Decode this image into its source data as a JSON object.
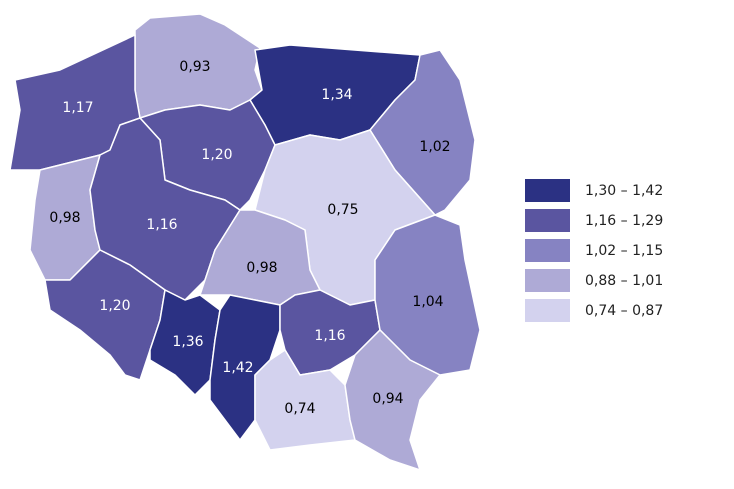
{
  "regions": [
    {
      "label": "0,93",
      "color": "#aeaad6"
    },
    {
      "label": "1,34",
      "color": "#2b3183"
    },
    {
      "label": "1,02",
      "color": "#8683c2"
    },
    {
      "label": "1,17",
      "color": "#5a55a0"
    },
    {
      "label": "1,20",
      "color": "#5a55a0"
    },
    {
      "label": "0,98",
      "color": "#aeaad6"
    },
    {
      "label": "1,16",
      "color": "#5a55a0"
    },
    {
      "label": "0,75",
      "color": "#d3d2ee"
    },
    {
      "label": "0,98",
      "color": "#aeaad6"
    },
    {
      "label": "1,20",
      "color": "#5a55a0"
    },
    {
      "label": "1,36",
      "color": "#2b3183"
    },
    {
      "label": "1,42",
      "color": "#2b3183"
    },
    {
      "label": "1,16",
      "color": "#5a55a0"
    },
    {
      "label": "1,04",
      "color": "#8683c2"
    },
    {
      "label": "0,74",
      "color": "#d3d2ee"
    },
    {
      "label": "0,94",
      "color": "#aeaad6"
    }
  ],
  "legend": [
    {
      "label": "1,30 – 1,42",
      "color": "#2b3183"
    },
    {
      "label": "1,16 – 1,29",
      "color": "#5a55a0"
    },
    {
      "label": "1,02 – 1,15",
      "color": "#8683c2"
    },
    {
      "label": "0,88 – 1,01",
      "color": "#aeaad6"
    },
    {
      "label": "0,74 – 0,87",
      "color": "#d3d2ee"
    }
  ]
}
